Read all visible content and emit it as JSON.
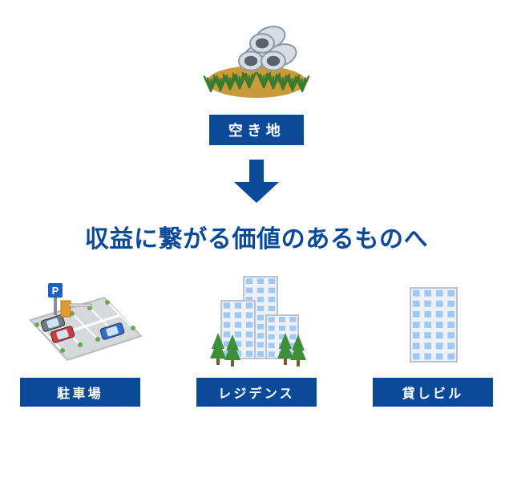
{
  "colors": {
    "accent": "#0b4a98",
    "label_bg": "#0b4a98",
    "label_text": "#ffffff",
    "headline_text": "#0b4a98",
    "grass_bottom": "#3b7a2e",
    "dirt": "#c99a3a",
    "pipe_fill": "#d7dde2",
    "pipe_stroke": "#8a98a6",
    "building_body": "#eef2f6",
    "building_stroke": "#b9c3cf",
    "window_fill": "#9fc8f2",
    "tree_green": "#3f8f3a",
    "tree_trunk": "#7b5a3a",
    "lot_ground": "#d6d9dc",
    "lot_line": "#ffffff",
    "car_red": "#d23b3b",
    "car_blue": "#2f6bd6",
    "car_gray": "#6f7a85",
    "sign_blue": "#1f5fc4",
    "sign_text": "#ffffff",
    "sign_pole": "#8a8f96",
    "gate_orange": "#e59a2e",
    "bush_green": "#6aa84f"
  },
  "top": {
    "label": "空き地"
  },
  "headline": "収益に繋がる価値のあるものへ",
  "bottom": [
    {
      "key": "parking",
      "label": "駐車場"
    },
    {
      "key": "residence",
      "label": "レジデンス"
    },
    {
      "key": "building",
      "label": "貸しビル"
    }
  ]
}
